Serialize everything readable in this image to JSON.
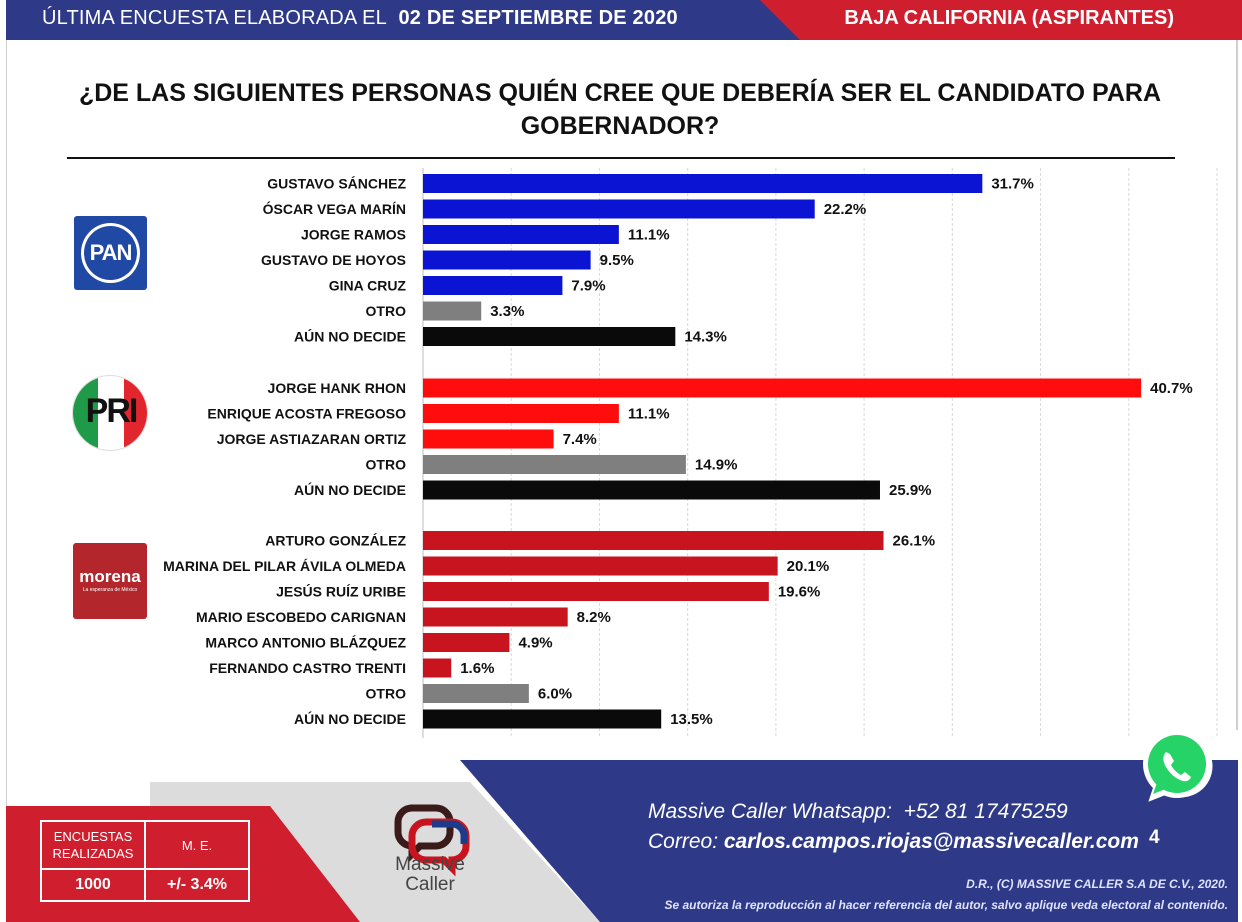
{
  "header": {
    "left_prefix": "ÚLTIMA ENCUESTA ELABORADA EL",
    "left_date": "02 DE SEPTIEMBRE DE 2020",
    "right": "BAJA CALIFORNIA (ASPIRANTES)",
    "colors": {
      "blue": "#2e3a87",
      "red": "#cf1f2f"
    }
  },
  "title": "¿DE LAS SIGUIENTES PERSONAS QUIÉN CREE QUE DEBERÍA SER EL CANDIDATO PARA GOBERNADOR?",
  "logos": {
    "pan": "PAN",
    "pri": "PRI",
    "morena": "morena",
    "morena_tagline": "La esperanza de México"
  },
  "chart_data": {
    "type": "bar",
    "orientation": "horizontal",
    "title": "¿DE LAS SIGUIENTES PERSONAS QUIÉN CREE QUE DEBERÍA SER EL CANDIDATO PARA GOBERNADOR?",
    "xlim": [
      0,
      45
    ],
    "grid": true,
    "unit": "%",
    "groups": [
      {
        "party": "PAN",
        "items": [
          {
            "label": "GUSTAVO SÁNCHEZ",
            "value": 31.7,
            "value_label": "31.7%",
            "color": "#0a14d2"
          },
          {
            "label": "ÓSCAR VEGA MARÍN",
            "value": 22.2,
            "value_label": "22.2%",
            "color": "#0a14d2"
          },
          {
            "label": "JORGE RAMOS",
            "value": 11.1,
            "value_label": "11.1%",
            "color": "#0a14d2"
          },
          {
            "label": "GUSTAVO DE HOYOS",
            "value": 9.5,
            "value_label": "9.5%",
            "color": "#0a14d2"
          },
          {
            "label": "GINA CRUZ",
            "value": 7.9,
            "value_label": "7.9%",
            "color": "#0a14d2"
          },
          {
            "label": "OTRO",
            "value": 3.3,
            "value_label": "3.3%",
            "color": "#7f7f7f"
          },
          {
            "label": "AÚN NO DECIDE",
            "value": 14.3,
            "value_label": "14.3%",
            "color": "#0a0a0a"
          }
        ]
      },
      {
        "party": "PRI",
        "items": [
          {
            "label": "JORGE HANK RHON",
            "value": 40.7,
            "value_label": "40.7%",
            "color": "#ff0c0c"
          },
          {
            "label": "ENRIQUE ACOSTA FREGOSO",
            "value": 11.1,
            "value_label": "11.1%",
            "color": "#ff0c0c"
          },
          {
            "label": "JORGE ASTIAZARAN ORTIZ",
            "value": 7.4,
            "value_label": "7.4%",
            "color": "#ff0c0c"
          },
          {
            "label": "OTRO",
            "value": 14.9,
            "value_label": "14.9%",
            "color": "#7f7f7f"
          },
          {
            "label": "AÚN NO DECIDE",
            "value": 25.9,
            "value_label": "25.9%",
            "color": "#0a0a0a"
          }
        ]
      },
      {
        "party": "MORENA",
        "items": [
          {
            "label": "ARTURO GONZÁLEZ",
            "value": 26.1,
            "value_label": "26.1%",
            "color": "#c8141e"
          },
          {
            "label": "MARINA DEL PILAR ÁVILA OLMEDA",
            "value": 20.1,
            "value_label": "20.1%",
            "color": "#c8141e"
          },
          {
            "label": "JESÚS RUÍZ URIBE",
            "value": 19.6,
            "value_label": "19.6%",
            "color": "#c8141e"
          },
          {
            "label": "MARIO ESCOBEDO CARIGNAN",
            "value": 8.2,
            "value_label": "8.2%",
            "color": "#c8141e"
          },
          {
            "label": "MARCO ANTONIO BLÁZQUEZ",
            "value": 4.9,
            "value_label": "4.9%",
            "color": "#c8141e"
          },
          {
            "label": "FERNANDO CASTRO TRENTI",
            "value": 1.6,
            "value_label": "1.6%",
            "color": "#c8141e"
          },
          {
            "label": "OTRO",
            "value": 6.0,
            "value_label": "6.0%",
            "color": "#7f7f7f"
          },
          {
            "label": "AÚN NO DECIDE",
            "value": 13.5,
            "value_label": "13.5%",
            "color": "#0a0a0a"
          }
        ]
      }
    ]
  },
  "footer": {
    "whatsapp_label": "Massive Caller Whatsapp:",
    "whatsapp_number": "+52 81 17475259",
    "email_label": "Correo:",
    "email": "carlos.campos.riojas@massivecaller.com",
    "page_number": "4",
    "legal_line1": "D.R., (C) MASSIVE CALLER S.A DE C.V., 2020.",
    "legal_line2": "Se autoriza la reproducción al hacer referencia del autor, salvo aplique veda electoral al contenido.",
    "brand_line1": "Massive",
    "brand_line2": "Caller",
    "stats": {
      "h1": "ENCUESTAS REALIZADAS",
      "h2": "M. E.",
      "v1": "1000",
      "v2": "+/- 3.4%"
    },
    "colors": {
      "blue": "#2e3a87",
      "red": "#cf1f2f",
      "gray": "#dcdcdc"
    }
  }
}
